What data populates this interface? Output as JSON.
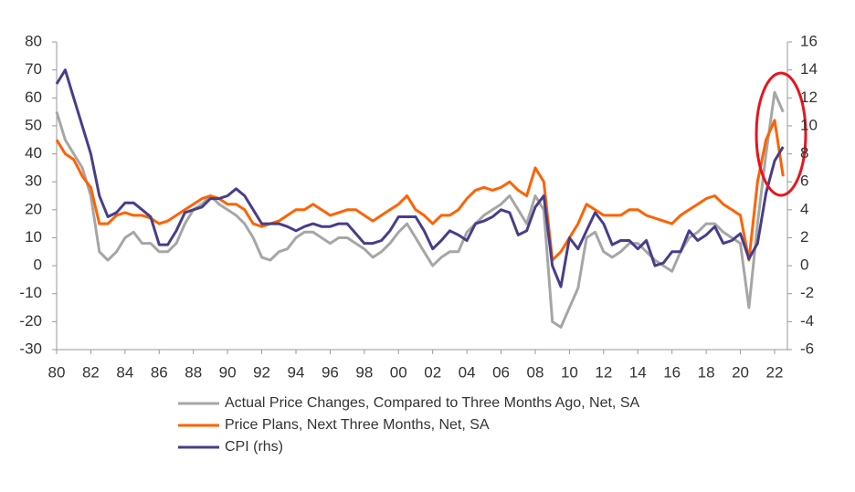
{
  "chart_data": {
    "type": "line",
    "x": [
      1980,
      1980.5,
      1981,
      1981.5,
      1982,
      1982.5,
      1983,
      1983.5,
      1984,
      1984.5,
      1985,
      1985.5,
      1986,
      1986.5,
      1987,
      1987.5,
      1988,
      1988.5,
      1989,
      1989.5,
      1990,
      1990.5,
      1991,
      1991.5,
      1992,
      1992.5,
      1993,
      1993.5,
      1994,
      1994.5,
      1995,
      1995.5,
      1996,
      1996.5,
      1997,
      1997.5,
      1998,
      1998.5,
      1999,
      1999.5,
      2000,
      2000.5,
      2001,
      2001.5,
      2002,
      2002.5,
      2003,
      2003.5,
      2004,
      2004.5,
      2005,
      2005.5,
      2006,
      2006.5,
      2007,
      2007.5,
      2008,
      2008.5,
      2009,
      2009.5,
      2010,
      2010.5,
      2011,
      2011.5,
      2012,
      2012.5,
      2013,
      2013.5,
      2014,
      2014.5,
      2015,
      2015.5,
      2016,
      2016.5,
      2017,
      2017.5,
      2018,
      2018.5,
      2019,
      2019.5,
      2020,
      2020.5,
      2021,
      2021.5,
      2022,
      2022.5
    ],
    "series": [
      {
        "name": "Actual Price Changes, Compared to Three Months Ago, Net, SA",
        "color": "#a6a6a6",
        "values": [
          55,
          45,
          40,
          35,
          25,
          5,
          2,
          5,
          10,
          12,
          8,
          8,
          5,
          5,
          8,
          15,
          20,
          22,
          25,
          22,
          20,
          18,
          15,
          10,
          3,
          2,
          5,
          6,
          10,
          12,
          12,
          10,
          8,
          10,
          10,
          8,
          6,
          3,
          5,
          8,
          12,
          15,
          10,
          5,
          0,
          3,
          5,
          5,
          12,
          15,
          18,
          20,
          22,
          25,
          20,
          15,
          25,
          20,
          -20,
          -22,
          -15,
          -8,
          10,
          12,
          5,
          3,
          5,
          8,
          8,
          5,
          2,
          0,
          -2,
          5,
          10,
          12,
          15,
          15,
          12,
          10,
          8,
          -15,
          15,
          40,
          62,
          55
        ]
      },
      {
        "name": "Price Plans, Next Three Months, Net, SA",
        "color": "#ff6200",
        "values": [
          45,
          40,
          38,
          32,
          28,
          15,
          15,
          18,
          19,
          18,
          18,
          17,
          15,
          16,
          18,
          20,
          22,
          24,
          25,
          24,
          22,
          22,
          20,
          15,
          14,
          15,
          16,
          18,
          20,
          20,
          22,
          20,
          18,
          19,
          20,
          20,
          18,
          16,
          18,
          20,
          22,
          25,
          20,
          18,
          15,
          18,
          18,
          20,
          24,
          27,
          28,
          27,
          28,
          30,
          27,
          25,
          35,
          30,
          2,
          5,
          10,
          15,
          22,
          20,
          18,
          18,
          18,
          20,
          20,
          18,
          17,
          16,
          15,
          18,
          20,
          22,
          24,
          25,
          22,
          20,
          18,
          2,
          30,
          45,
          52,
          32
        ]
      },
      {
        "name": "CPI (rhs)",
        "color": "#483d8b",
        "axis": "y2",
        "values": [
          13,
          14,
          12,
          10,
          8,
          5,
          3.5,
          3.8,
          4.5,
          4.5,
          4,
          3.5,
          1.5,
          1.5,
          2.5,
          3.8,
          4,
          4.2,
          4.8,
          4.8,
          5,
          5.5,
          5,
          4,
          3,
          3,
          3,
          2.8,
          2.5,
          2.8,
          3,
          2.8,
          2.8,
          3,
          3,
          2.3,
          1.6,
          1.6,
          1.8,
          2.5,
          3.5,
          3.5,
          3.5,
          2.5,
          1.2,
          1.8,
          2.5,
          2.2,
          1.8,
          3,
          3.2,
          3.5,
          4,
          3.8,
          2.2,
          2.5,
          4.2,
          5,
          0,
          -1.5,
          2,
          1.2,
          2.5,
          3.8,
          3,
          1.5,
          1.8,
          1.8,
          1.2,
          1.8,
          0,
          0.2,
          1,
          1,
          2.5,
          1.8,
          2.2,
          2.8,
          1.6,
          1.8,
          2.3,
          0.5,
          1.6,
          5.2,
          7.5,
          8.5
        ]
      }
    ],
    "xlim": [
      1980,
      2022.75
    ],
    "xticks": [
      {
        "value": 1980,
        "label": "80"
      },
      {
        "value": 1982,
        "label": "82"
      },
      {
        "value": 1984,
        "label": "84"
      },
      {
        "value": 1986,
        "label": "86"
      },
      {
        "value": 1988,
        "label": "88"
      },
      {
        "value": 1990,
        "label": "90"
      },
      {
        "value": 1992,
        "label": "92"
      },
      {
        "value": 1994,
        "label": "94"
      },
      {
        "value": 1996,
        "label": "96"
      },
      {
        "value": 1998,
        "label": "98"
      },
      {
        "value": 2000,
        "label": "00"
      },
      {
        "value": 2002,
        "label": "02"
      },
      {
        "value": 2004,
        "label": "04"
      },
      {
        "value": 2006,
        "label": "06"
      },
      {
        "value": 2008,
        "label": "08"
      },
      {
        "value": 2010,
        "label": "10"
      },
      {
        "value": 2012,
        "label": "12"
      },
      {
        "value": 2014,
        "label": "14"
      },
      {
        "value": 2016,
        "label": "16"
      },
      {
        "value": 2018,
        "label": "18"
      },
      {
        "value": 2020,
        "label": "20"
      },
      {
        "value": 2022,
        "label": "22"
      }
    ],
    "ylim": [
      -30,
      80
    ],
    "yticks": [
      -30,
      -20,
      -10,
      0,
      10,
      20,
      30,
      40,
      50,
      60,
      70,
      80
    ],
    "y2lim": [
      -6,
      16
    ],
    "y2ticks": [
      -6,
      -4,
      -2,
      0,
      2,
      4,
      6,
      8,
      10,
      12,
      14,
      16
    ],
    "grid": false,
    "legend": "bottom"
  }
}
